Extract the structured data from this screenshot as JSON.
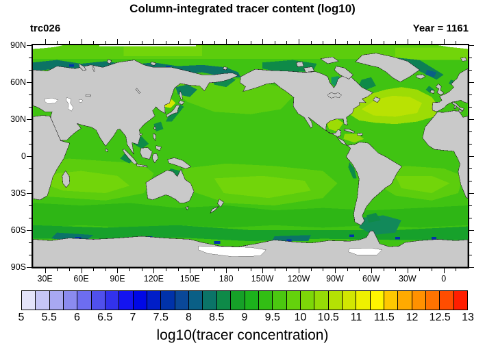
{
  "header": {
    "title": "Column-integrated tracer content (log10)",
    "left_label": "trc026",
    "right_label": "Year = 1161"
  },
  "chart_data": {
    "type": "heatmap",
    "title": "Column-integrated tracer content (log10)",
    "annotations": {
      "top_left": "trc026",
      "top_right": "Year = 1161"
    },
    "map": {
      "projection": "cylindrical equidistant world map, Pacific-centered",
      "lon_range_deg_east": [
        20,
        380
      ],
      "lat_range_deg": [
        -90,
        90
      ],
      "land_color": "#c9c9c9",
      "missing_data_color": "#ffffff",
      "grid": "off"
    },
    "x_axis": {
      "tick_labels": [
        "30E",
        "60E",
        "90E",
        "120E",
        "150E",
        "180",
        "150W",
        "120W",
        "90W",
        "60W",
        "30W",
        "0"
      ],
      "tick_lons_deg_east": [
        30,
        60,
        90,
        120,
        150,
        180,
        210,
        240,
        270,
        300,
        330,
        360
      ],
      "minor_tick_interval_deg": 10
    },
    "y_axis": {
      "tick_labels": [
        "90N",
        "60N",
        "30N",
        "0",
        "30S",
        "60S",
        "90S"
      ],
      "tick_lats_deg": [
        90,
        60,
        30,
        0,
        -30,
        -60,
        -90
      ],
      "minor_tick_interval_deg": 10
    },
    "colorbar": {
      "label": "log10(tracer concentration)",
      "min": 5,
      "max": 13,
      "box_step": 0.25,
      "tick_labels": [
        "5",
        "5.5",
        "6",
        "6.5",
        "7",
        "7.5",
        "8",
        "8.5",
        "9",
        "9.5",
        "10",
        "10.5",
        "11",
        "11.5",
        "12",
        "12.5",
        "13"
      ],
      "box_colors": [
        "#e4e4fa",
        "#c6c6f6",
        "#a8a8f2",
        "#8b8bf0",
        "#6d6df0",
        "#5050ec",
        "#3232ec",
        "#1414f0",
        "#0008e6",
        "#001ec8",
        "#0032aa",
        "#0a4898",
        "#0a5f86",
        "#0b7468",
        "#0e8a48",
        "#16a028",
        "#1cb21c",
        "#32be14",
        "#4bc810",
        "#64d20c",
        "#7dd708",
        "#96dc06",
        "#b4e104",
        "#d2e602",
        "#eef000",
        "#fff500",
        "#ffc800",
        "#ffaa00",
        "#ff9100",
        "#ff7300",
        "#ff4d00",
        "#ff1e00"
      ]
    },
    "field_summary": {
      "open_ocean_typical_log10": "9.5 to 10.25 (green)",
      "north_atlantic_and_gulf_of_mexico": "10.5 to 11 (yellow-green)",
      "sea_of_japan_patch": "about 11 (yellow-green/yellow)",
      "arctic_siberian_shelf_and_subpolar_seas": "8.5 to 9 (dark teal)",
      "southern_ocean_toward_antarctica": "9 to 9.5 grading darker near coast",
      "antarctic_and_arctic_coast_spots": "6.5 to 8 (blue specks)",
      "black_sea_caspian_sea_ice_shelves": "missing (white)"
    }
  }
}
